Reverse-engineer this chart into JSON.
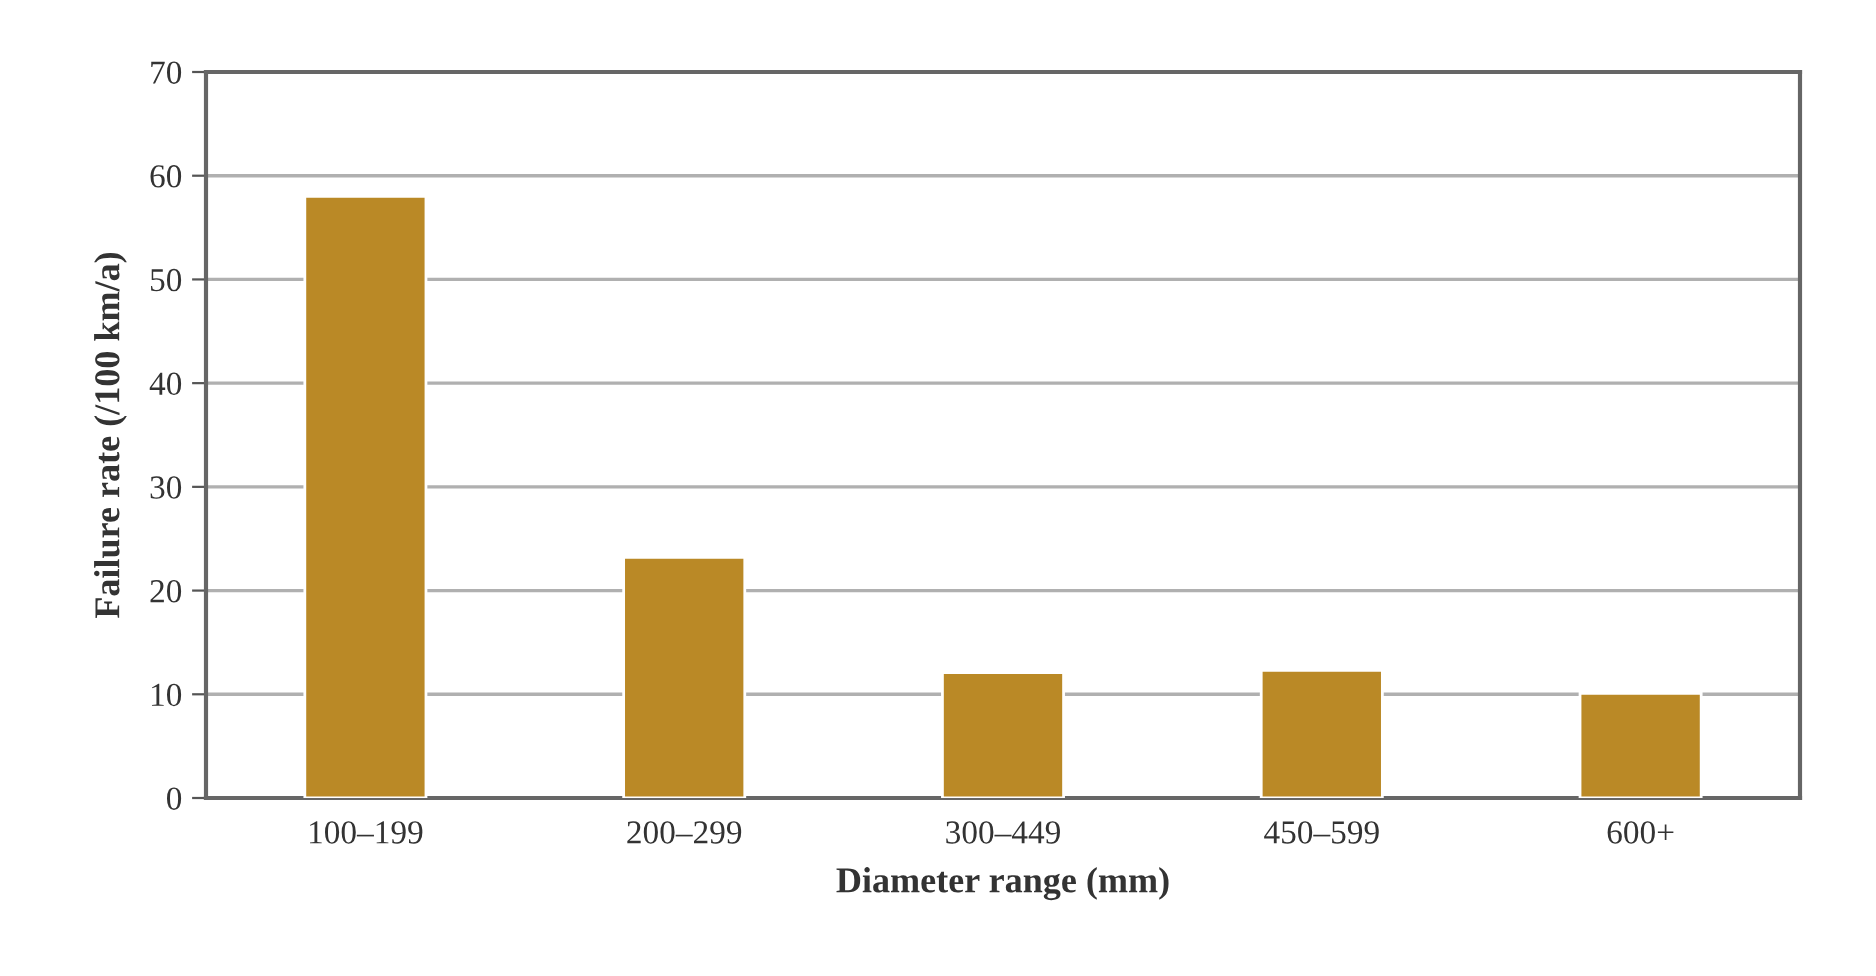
{
  "chart_data": {
    "type": "bar",
    "xlabel": "Diameter range (mm)",
    "ylabel": "Failure rate (/100 km/a)",
    "categories": [
      "100–199",
      "200–299",
      "300–449",
      "450–599",
      "600+"
    ],
    "values": [
      58,
      23.2,
      12.1,
      12.3,
      10.1
    ],
    "color": "#ba8926",
    "ylim": [
      0,
      70
    ],
    "yticks": [
      0,
      10,
      20,
      30,
      40,
      50,
      60,
      70
    ],
    "grid": "y",
    "legend": false
  }
}
